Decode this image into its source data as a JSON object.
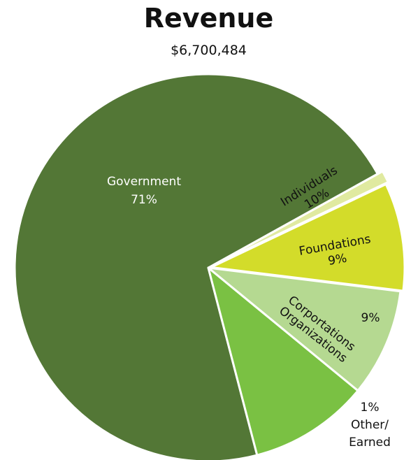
{
  "chart_data": {
    "type": "pie",
    "title": "Revenue",
    "subtitle": "$6,700,484",
    "slices": [
      {
        "name": "Government",
        "label_lines": [
          "Government",
          "71%"
        ],
        "value": 71,
        "color": "#537736",
        "label_color": "#ffffff"
      },
      {
        "name": "Individuals",
        "label_lines": [
          "Individuals",
          "10%"
        ],
        "value": 10,
        "color": "#7ac143",
        "label_color": "#111111"
      },
      {
        "name": "Foundations",
        "label_lines": [
          "Foundations",
          "9%"
        ],
        "value": 9,
        "color": "#b5d991",
        "label_color": "#111111"
      },
      {
        "name": "Corportations Organizations",
        "label_lines": [
          "Corportations",
          "Organizations"
        ],
        "percent_label": "9%",
        "value": 9,
        "color": "#d3dc2a",
        "label_color": "#111111"
      },
      {
        "name": "Other/ Earned",
        "label_lines": [
          "1%",
          "Other/",
          "Earned"
        ],
        "value": 1,
        "color": "#e0eaa0",
        "label_color": "#111111"
      }
    ]
  }
}
